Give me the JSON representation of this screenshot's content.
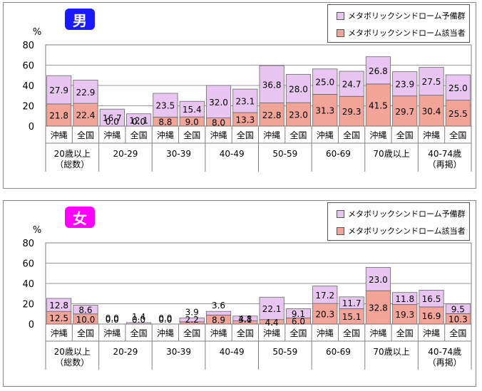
{
  "chart_data": [
    {
      "type": "bar",
      "stacked": true,
      "title": "男",
      "unit": "%",
      "ylim": [
        0,
        80
      ],
      "yticks": [
        0,
        20,
        40,
        60,
        80
      ],
      "groups": [
        {
          "label": [
            "20歳以上",
            "（総数）"
          ],
          "bars": [
            "沖縄",
            "全国"
          ]
        },
        {
          "label": [
            "20-29"
          ],
          "bars": [
            "沖縄",
            "全国"
          ]
        },
        {
          "label": [
            "30-39"
          ],
          "bars": [
            "沖縄",
            "全国"
          ]
        },
        {
          "label": [
            "40-49"
          ],
          "bars": [
            "沖縄",
            "全国"
          ]
        },
        {
          "label": [
            "50-59"
          ],
          "bars": [
            "沖縄",
            "全国"
          ]
        },
        {
          "label": [
            "60-69"
          ],
          "bars": [
            "沖縄",
            "全国"
          ]
        },
        {
          "label": [
            "70歳以上"
          ],
          "bars": [
            "沖縄",
            "全国"
          ]
        },
        {
          "label": [
            "40-74歳",
            "（再掲）"
          ],
          "bars": [
            "沖縄",
            "全国"
          ]
        }
      ],
      "series": [
        {
          "name": "メタボリックシンドローム該当者",
          "color": "#f2a499",
          "values": [
            21.8,
            22.4,
            0.0,
            0.0,
            8.8,
            9.0,
            8.0,
            13.3,
            22.8,
            23.0,
            31.3,
            29.3,
            41.5,
            29.7,
            30.4,
            25.5
          ]
        },
        {
          "name": "メタボリックシンドローム予備群",
          "color": "#e9c6f1",
          "values": [
            27.9,
            22.9,
            16.7,
            12.1,
            23.5,
            15.4,
            32.0,
            23.1,
            36.8,
            28.0,
            25.0,
            24.7,
            26.8,
            23.9,
            27.5,
            25.0
          ]
        }
      ],
      "legend": "top-right",
      "badge_color": "#1a1aff"
    },
    {
      "type": "bar",
      "stacked": true,
      "title": "女",
      "unit": "%",
      "ylim": [
        0,
        80
      ],
      "yticks": [
        0,
        20,
        40,
        60,
        80
      ],
      "groups": [
        {
          "label": [
            "20歳以上",
            "（総数）"
          ],
          "bars": [
            "沖縄",
            "全国"
          ]
        },
        {
          "label": [
            "20-29"
          ],
          "bars": [
            "沖縄",
            "全国"
          ]
        },
        {
          "label": [
            "30-39"
          ],
          "bars": [
            "沖縄",
            "全国"
          ]
        },
        {
          "label": [
            "40-49"
          ],
          "bars": [
            "沖縄",
            "全国"
          ]
        },
        {
          "label": [
            "50-59"
          ],
          "bars": [
            "沖縄",
            "全国"
          ]
        },
        {
          "label": [
            "60-69"
          ],
          "bars": [
            "沖縄",
            "全国"
          ]
        },
        {
          "label": [
            "70歳以上"
          ],
          "bars": [
            "沖縄",
            "全国"
          ]
        },
        {
          "label": [
            "40-74歳",
            "（再掲）"
          ],
          "bars": [
            "沖縄",
            "全国"
          ]
        }
      ],
      "series": [
        {
          "name": "メタボリックシンドローム該当者",
          "color": "#f2a499",
          "values": [
            12.5,
            10.0,
            0.0,
            0.0,
            0.0,
            2.2,
            8.9,
            3.1,
            4.4,
            6.0,
            20.3,
            15.1,
            32.8,
            19.3,
            16.9,
            10.3
          ]
        },
        {
          "name": "メタボリックシンドローム予備群",
          "color": "#e9c6f1",
          "values": [
            12.8,
            8.6,
            0.0,
            1.4,
            0.0,
            3.9,
            3.6,
            4.8,
            22.1,
            9.1,
            17.2,
            11.7,
            23.0,
            11.8,
            16.5,
            9.5
          ]
        }
      ],
      "legend": "top-right",
      "badge_color": "#ff00ff"
    }
  ]
}
